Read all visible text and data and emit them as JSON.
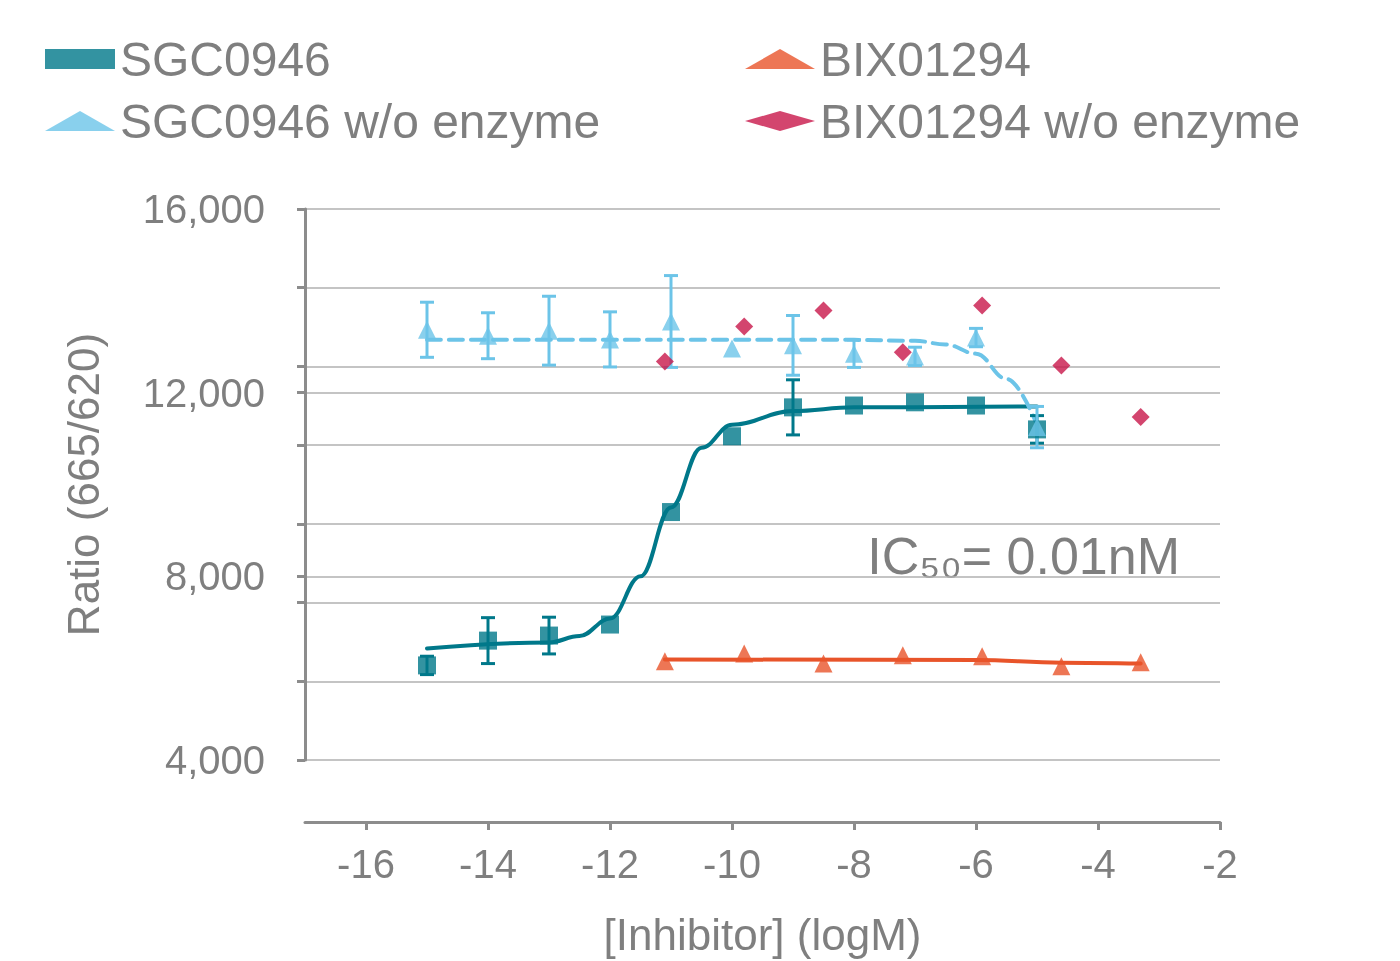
{
  "chart_data": {
    "type": "scatter",
    "xlabel": "[Inhibitor] (logM)",
    "ylabel": "Ratio (665/620)",
    "xlim": [
      -17,
      -2
    ],
    "xticks": [
      -16,
      -14,
      -12,
      -10,
      -8,
      -6,
      -4,
      -2
    ],
    "ylim": [
      4000,
      16000
    ],
    "yticks": [
      {
        "value": 4000,
        "label": "4,000"
      },
      {
        "value": 5714,
        "label": null
      },
      {
        "value": 7429,
        "label": null
      },
      {
        "value": 8000,
        "label": "8,000"
      },
      {
        "value": 9143,
        "label": null
      },
      {
        "value": 10857,
        "label": null
      },
      {
        "value": 12000,
        "label": "12,000"
      },
      {
        "value": 12571,
        "label": null
      },
      {
        "value": 14286,
        "label": null
      },
      {
        "value": 16000,
        "label": "16,000"
      }
    ],
    "grid": "y",
    "legend": "top",
    "annotations": [
      "IC₅₀= 0.01nM"
    ],
    "series": [
      {
        "name": "SGC0946",
        "color": "#00788a",
        "marker": "square",
        "x": [
          -15,
          -14,
          -13,
          -12,
          -11,
          -10,
          -9,
          -8,
          -7,
          -6,
          -5
        ],
        "values": [
          6060,
          6600,
          6710,
          6950,
          9400,
          11050,
          11680,
          11720,
          11790,
          11720,
          11200
        ],
        "errors": [
          200,
          500,
          400,
          null,
          null,
          null,
          600,
          null,
          null,
          null,
          300
        ]
      },
      {
        "name": "SGC0946 w/o enzyme",
        "color": "#6cc4e8",
        "marker": "triangle",
        "x": [
          -15,
          -14,
          -13,
          -12,
          -11,
          -10,
          -9,
          -8,
          -7,
          -6,
          -5
        ],
        "values": [
          13370,
          13240,
          13350,
          13160,
          13550,
          12960,
          13030,
          12850,
          12790,
          13200,
          11250
        ],
        "errors": [
          600,
          500,
          750,
          600,
          1000,
          null,
          650,
          300,
          200,
          200,
          450
        ]
      },
      {
        "name": "BIX01294",
        "color": "#e8542a",
        "marker": "triangle",
        "x": [
          -11.1,
          -9.8,
          -8.5,
          -7.2,
          -5.9,
          -4.6,
          -3.3
        ],
        "values": [
          6150,
          6320,
          6100,
          6280,
          6260,
          6040,
          6130
        ]
      },
      {
        "name": "BIX01294 w/o enzyme",
        "color": "#c8174a",
        "marker": "diamond",
        "x": [
          -11.1,
          -9.8,
          -8.5,
          -7.2,
          -5.9,
          -4.6,
          -3.3
        ],
        "values": [
          12680,
          13440,
          13790,
          12880,
          13900,
          12590,
          11470
        ]
      },
      {
        "type": "line",
        "color": "#00788a",
        "line_style": "solid",
        "x": [
          -15,
          -13,
          -12.5,
          -12,
          -11.5,
          -11,
          -10.5,
          -10,
          -9,
          -8,
          -5
        ],
        "values": [
          6430,
          6560,
          6700,
          7080,
          8000,
          9500,
          10800,
          11300,
          11600,
          11680,
          11700
        ]
      },
      {
        "type": "line",
        "color": "#6cc4e8",
        "line_style": "dashed",
        "x": [
          -15,
          -8,
          -7,
          -6.5,
          -6,
          -5.5,
          -5
        ],
        "values": [
          13150,
          13150,
          13130,
          13050,
          12850,
          12300,
          11300
        ]
      },
      {
        "type": "line",
        "color": "#e8542a",
        "line_style": "solid",
        "x": [
          -11.1,
          -6,
          -4.6,
          -3.3
        ],
        "values": [
          6190,
          6180,
          6120,
          6100
        ]
      }
    ]
  }
}
